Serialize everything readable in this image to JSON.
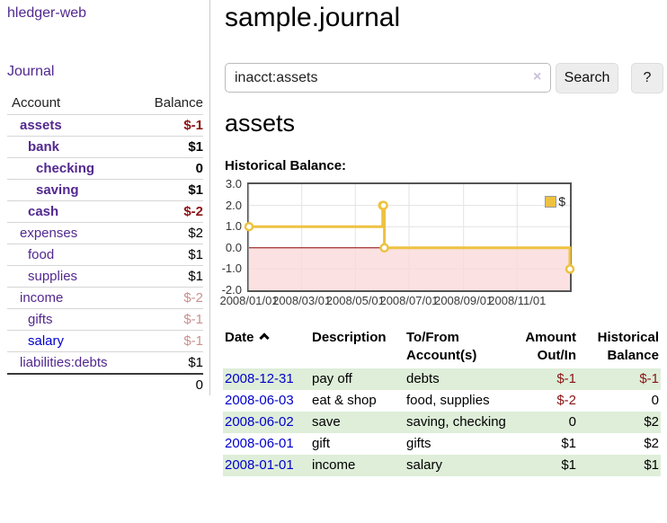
{
  "sidebar": {
    "brand": "hledger-web",
    "journal_link": "Journal",
    "accounts": {
      "col_account": "Account",
      "col_balance": "Balance",
      "rows": [
        {
          "name": "assets",
          "balance": "$-1"
        },
        {
          "name": "bank",
          "balance": "$1"
        },
        {
          "name": "checking",
          "balance": "0"
        },
        {
          "name": "saving",
          "balance": "$1"
        },
        {
          "name": "cash",
          "balance": "$-2"
        },
        {
          "name": "expenses",
          "balance": "$2"
        },
        {
          "name": "food",
          "balance": "$1"
        },
        {
          "name": "supplies",
          "balance": "$1"
        },
        {
          "name": "income",
          "balance": "$-2"
        },
        {
          "name": "gifts",
          "balance": "$-1"
        },
        {
          "name": "salary",
          "balance": "$-1"
        },
        {
          "name": "liabilities:debts",
          "balance": "$1"
        }
      ],
      "total": "0"
    }
  },
  "header": {
    "title": "sample.journal"
  },
  "search": {
    "value": "inacct:assets",
    "clear_icon": "×",
    "button_label": "Search",
    "help_label": "?"
  },
  "account_page": {
    "heading": "assets",
    "chart_title": "Historical Balance:"
  },
  "chart_data": {
    "type": "line",
    "step": true,
    "title": "Historical Balance:",
    "series": [
      {
        "name": "$",
        "color": "#edc240",
        "points": [
          [
            "2008-01-01",
            1
          ],
          [
            "2008-06-01",
            2
          ],
          [
            "2008-06-02",
            2
          ],
          [
            "2008-06-03",
            0
          ],
          [
            "2008-12-31",
            -1
          ]
        ]
      }
    ],
    "x_range": [
      "2008-01-01",
      "2008-12-31"
    ],
    "ylim": [
      -2,
      3
    ],
    "yticks": [
      {
        "v": 3,
        "label": "3.0"
      },
      {
        "v": 2,
        "label": "2.0"
      },
      {
        "v": 1,
        "label": "1.0"
      },
      {
        "v": 0,
        "label": "0.0"
      },
      {
        "v": -1,
        "label": "-1.0"
      },
      {
        "v": -2,
        "label": "-2.0"
      }
    ],
    "xticks": [
      {
        "date": "2008-01-01",
        "label": "2008/01/01"
      },
      {
        "date": "2008-03-01",
        "label": "2008/03/01"
      },
      {
        "date": "2008-05-01",
        "label": "2008/05/01"
      },
      {
        "date": "2008-07-01",
        "label": "2008/07/01"
      },
      {
        "date": "2008-09-01",
        "label": "2008/09/01"
      },
      {
        "date": "2008-11-01",
        "label": "2008/11/01"
      }
    ],
    "legend": {
      "label": "$",
      "position": "top-right"
    },
    "negative_region_fill": "#fadada",
    "zero_line_color": "#8b0000",
    "grid": true
  },
  "register": {
    "headers": {
      "date": "Date",
      "description": "Description",
      "account_line1": "To/From",
      "account_line2": "Account(s)",
      "amount_line1": "Amount",
      "amount_line2": "Out/In",
      "balance_line1": "Historical",
      "balance_line2": "Balance"
    },
    "rows": [
      {
        "date": "2008-12-31",
        "description": "pay off",
        "accounts": "debts",
        "amount": "$-1",
        "balance": "$-1"
      },
      {
        "date": "2008-06-03",
        "description": "eat & shop",
        "accounts": "food, supplies",
        "amount": "$-2",
        "balance": "0"
      },
      {
        "date": "2008-06-02",
        "description": "save",
        "accounts": "saving, checking",
        "amount": "0",
        "balance": "$2"
      },
      {
        "date": "2008-06-01",
        "description": "gift",
        "accounts": "gifts",
        "amount": "$1",
        "balance": "$2"
      },
      {
        "date": "2008-01-01",
        "description": "income",
        "accounts": "salary",
        "amount": "$1",
        "balance": "$1"
      }
    ]
  },
  "colors": {
    "link_purple": "#52288f",
    "link_blue": "#0000cc",
    "negative_strong": "#8b1414",
    "negative_soft": "#c9908f",
    "row_green": "#deeed9",
    "chart_line": "#edc240",
    "chart_negative_fill": "#fadada",
    "zero_line": "#8b0000"
  }
}
